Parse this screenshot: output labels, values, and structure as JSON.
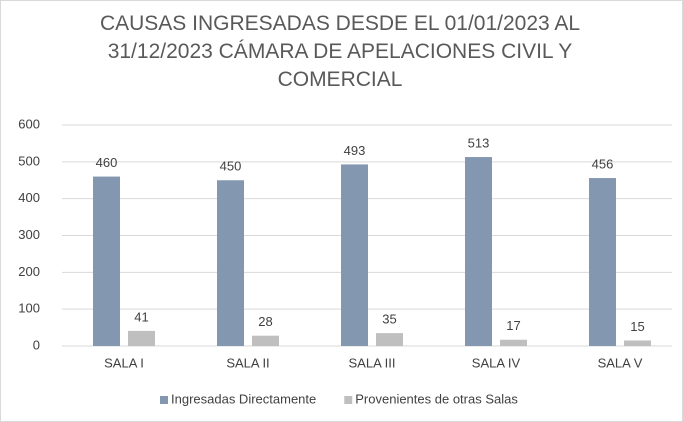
{
  "chart_data": {
    "type": "bar",
    "title": "CAUSAS INGRESADAS DESDE EL 01/01/2023 AL 31/12/2023 CÁMARA DE APELACIONES CIVIL Y COMERCIAL",
    "categories": [
      "SALA I",
      "SALA II",
      "SALA III",
      "SALA IV",
      "SALA V"
    ],
    "series": [
      {
        "name": "Ingresadas Directamente",
        "color": "#8497b0",
        "values": [
          460,
          450,
          493,
          513,
          456
        ]
      },
      {
        "name": "Provenientes de otras Salas",
        "color": "#bfbfbf",
        "values": [
          41,
          28,
          35,
          17,
          15
        ]
      }
    ],
    "ylim": [
      0,
      600
    ],
    "yticks": [
      0,
      100,
      200,
      300,
      400,
      500,
      600
    ],
    "grid": true,
    "legend": "bottom"
  }
}
